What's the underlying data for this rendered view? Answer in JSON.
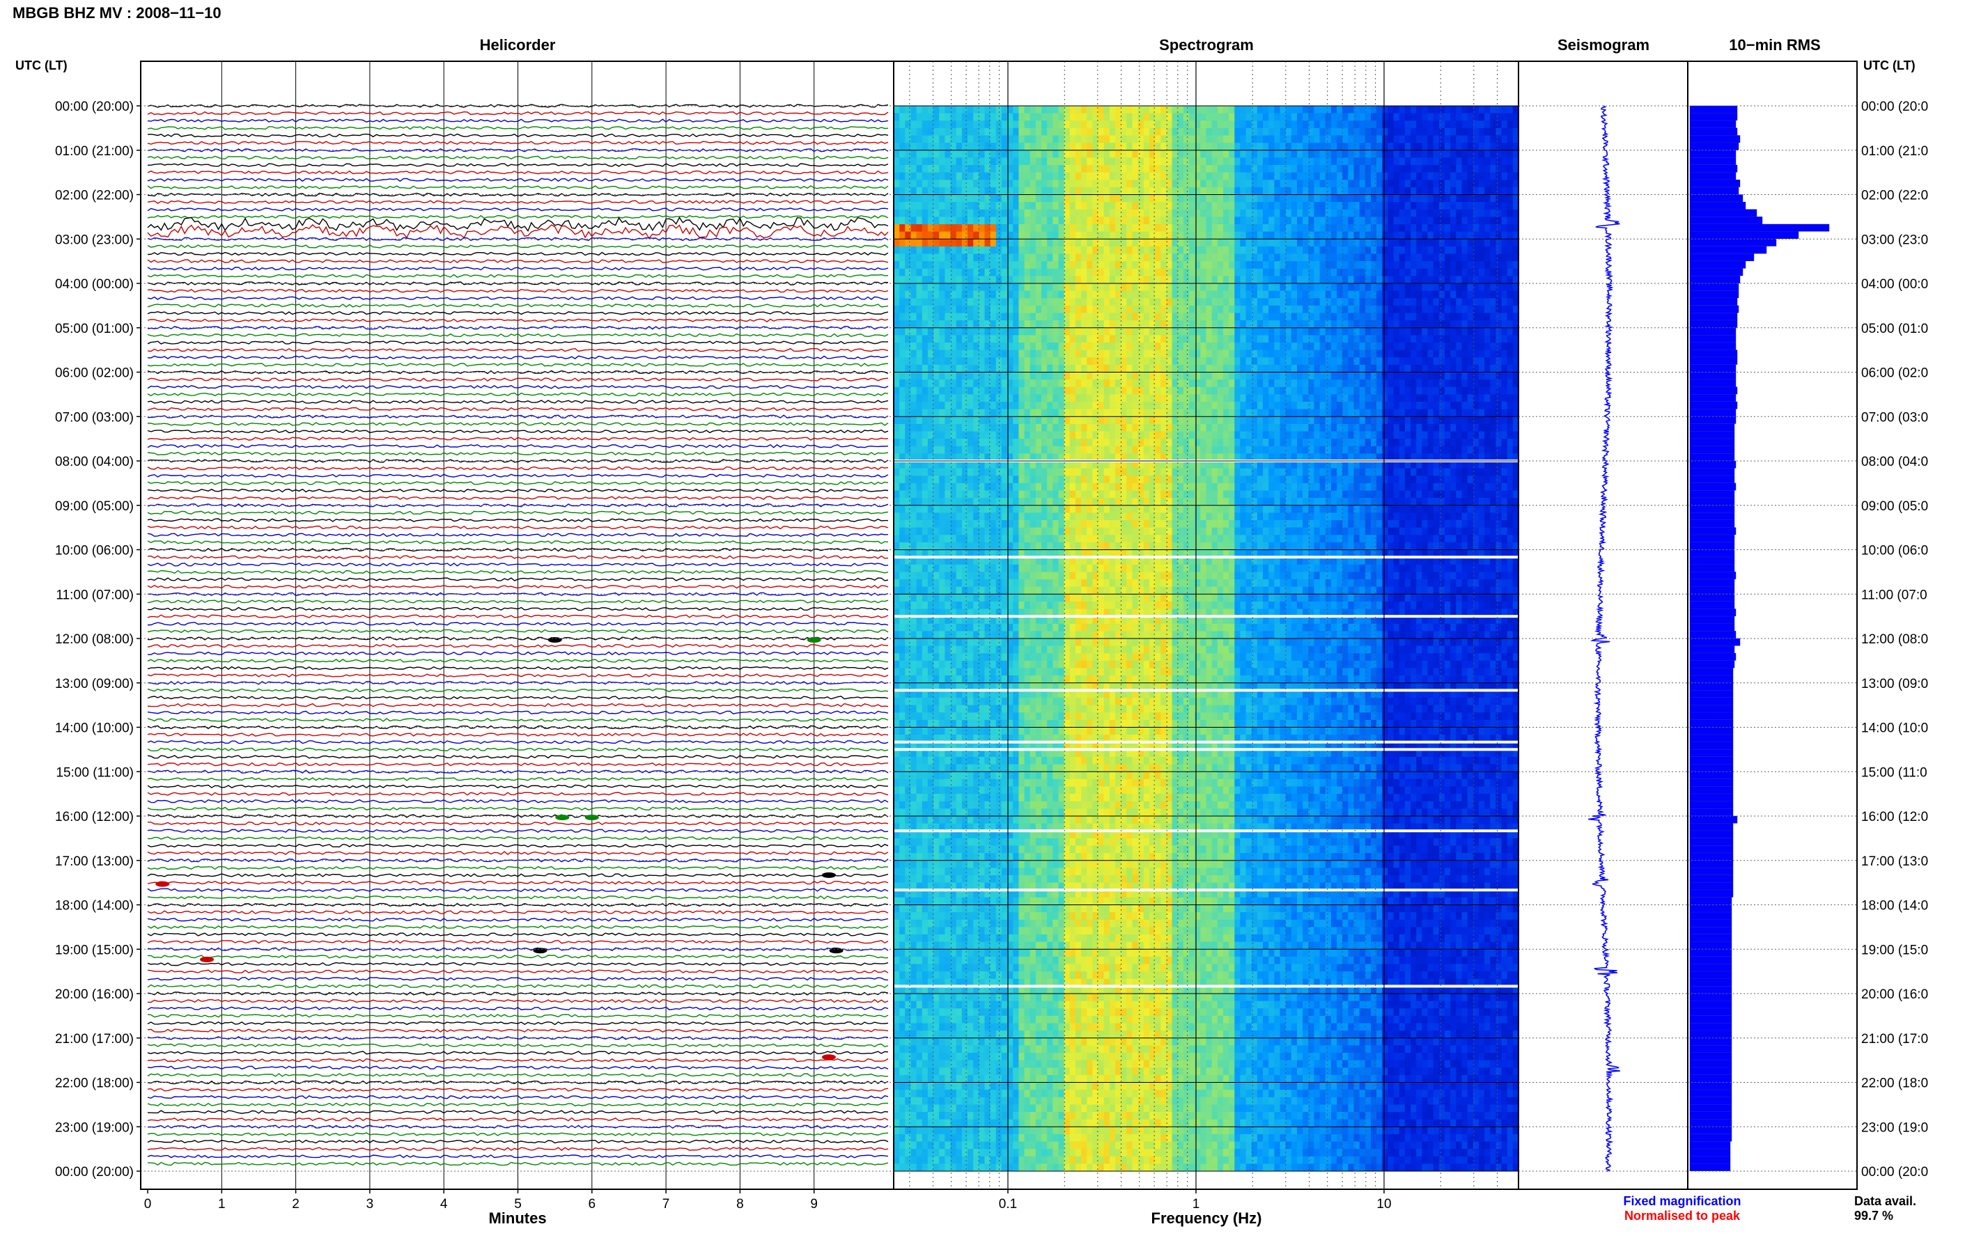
{
  "header": {
    "title": "MBGB BHZ MV : 2008−11−10"
  },
  "panels": {
    "helicorder": "Helicorder",
    "spectrogram": "Spectrogram",
    "seismogram": "Seismogram",
    "rms": "10−min RMS"
  },
  "axis": {
    "left_header": "UTC (LT)",
    "right_header": "UTC (LT)",
    "time_labels": [
      "00:00 (20:00)",
      "01:00 (21:00)",
      "02:00 (22:00)",
      "03:00 (23:00)",
      "04:00 (00:00)",
      "05:00 (01:00)",
      "06:00 (02:00)",
      "07:00 (03:00)",
      "08:00 (04:00)",
      "09:00 (05:00)",
      "10:00 (06:00)",
      "11:00 (07:00)",
      "12:00 (08:00)",
      "13:00 (09:00)",
      "14:00 (10:00)",
      "15:00 (11:00)",
      "16:00 (12:00)",
      "17:00 (13:00)",
      "18:00 (14:00)",
      "19:00 (15:00)",
      "20:00 (16:00)",
      "21:00 (17:00)",
      "22:00 (18:00)",
      "23:00 (19:00)",
      "00:00 (20:00)"
    ],
    "right_time_labels": [
      "00:00 (20:0",
      "01:00 (21:0",
      "02:00 (22:0",
      "03:00 (23:0",
      "04:00 (00:0",
      "05:00 (01:0",
      "06:00 (02:0",
      "07:00 (03:0",
      "08:00 (04:0",
      "09:00 (05:0",
      "10:00 (06:0",
      "11:00 (07:0",
      "12:00 (08:0",
      "13:00 (09:0",
      "14:00 (10:0",
      "15:00 (11:0",
      "16:00 (12:0",
      "17:00 (13:0",
      "18:00 (14:0",
      "19:00 (15:0",
      "20:00 (16:0",
      "21:00 (17:0",
      "22:00 (18:0",
      "23:00 (19:0",
      "00:00 (20:0"
    ],
    "minutes_ticks": [
      "0",
      "1",
      "2",
      "3",
      "4",
      "5",
      "6",
      "7",
      "8",
      "9"
    ],
    "minutes_label": "Minutes",
    "freq_ticks": [
      "0.1",
      "1",
      "10"
    ],
    "freq_label": "Frequency (Hz)"
  },
  "legend": {
    "fixed": "Fixed magnification",
    "normalised": "Normalised to peak",
    "fixed_color": "#0000ff",
    "normalised_color": "#ff0000"
  },
  "data_avail": {
    "label": "Data avail.",
    "value": "99.7 %"
  },
  "colors": {
    "trace_cycle": [
      "#000000",
      "#cc0000",
      "#0000cc",
      "#008800"
    ],
    "seismogram": "#0000ff",
    "rms": "#0000ff"
  },
  "chart_data": [
    {
      "type": "line",
      "name": "helicorder",
      "xlabel": "Minutes",
      "xlim": [
        0,
        10
      ],
      "rows_per_hour": 6,
      "hours": 24,
      "notable_events_utc": [
        "02:40",
        "03:00",
        "12:00",
        "16:00",
        "17:20",
        "17:30",
        "19:00",
        "21:40"
      ]
    },
    {
      "type": "heatmap",
      "name": "spectrogram",
      "xlabel": "Frequency (Hz)",
      "xscale": "log",
      "xlim": [
        0.01,
        50
      ],
      "xticks": [
        0.1,
        1,
        10
      ],
      "peak_band_hz": [
        0.15,
        0.5
      ],
      "microseism_event_utc": "02:50",
      "data_gaps_utc": [
        "08:00",
        "10:10",
        "11:30",
        "13:10",
        "14:20",
        "14:30",
        "16:20",
        "17:40",
        "19:50"
      ]
    },
    {
      "type": "line",
      "name": "seismogram",
      "events_utc": [
        "02:40",
        "12:00",
        "16:00",
        "17:30",
        "19:30",
        "21:40"
      ]
    },
    {
      "type": "bar",
      "name": "10-min RMS",
      "orientation": "horizontal",
      "interval_min": 10,
      "relative_values": [
        0.34,
        0.34,
        0.33,
        0.34,
        0.36,
        0.35,
        0.33,
        0.33,
        0.34,
        0.33,
        0.36,
        0.35,
        0.38,
        0.4,
        0.48,
        0.52,
        1.0,
        0.78,
        0.62,
        0.55,
        0.46,
        0.4,
        0.38,
        0.36,
        0.35,
        0.35,
        0.34,
        0.35,
        0.34,
        0.34,
        0.33,
        0.33,
        0.33,
        0.34,
        0.34,
        0.33,
        0.33,
        0.33,
        0.34,
        0.33,
        0.34,
        0.33,
        0.33,
        0.32,
        0.32,
        0.32,
        0.32,
        0.32,
        0.33,
        0.32,
        0.32,
        0.33,
        0.32,
        0.32,
        0.32,
        0.32,
        0.32,
        0.33,
        0.32,
        0.32,
        0.32,
        0.32,
        0.32,
        0.33,
        0.32,
        0.32,
        0.32,
        0.32,
        0.33,
        0.32,
        0.32,
        0.33,
        0.36,
        0.32,
        0.33,
        0.32,
        0.31,
        0.31,
        0.31,
        0.31,
        0.31,
        0.31,
        0.31,
        0.31,
        0.31,
        0.31,
        0.31,
        0.31,
        0.31,
        0.31,
        0.31,
        0.31,
        0.31,
        0.31,
        0.31,
        0.31,
        0.34,
        0.31,
        0.31,
        0.31,
        0.31,
        0.31,
        0.31,
        0.31,
        0.31,
        0.31,
        0.31,
        0.3,
        0.3,
        0.3,
        0.3,
        0.3,
        0.3,
        0.3,
        0.3,
        0.3,
        0.3,
        0.3,
        0.3,
        0.3,
        0.3,
        0.3,
        0.3,
        0.3,
        0.3,
        0.3,
        0.3,
        0.3,
        0.3,
        0.3,
        0.3,
        0.3,
        0.3,
        0.3,
        0.3,
        0.3,
        0.3,
        0.3,
        0.3,
        0.3,
        0.29,
        0.29,
        0.29,
        0.29
      ]
    }
  ]
}
